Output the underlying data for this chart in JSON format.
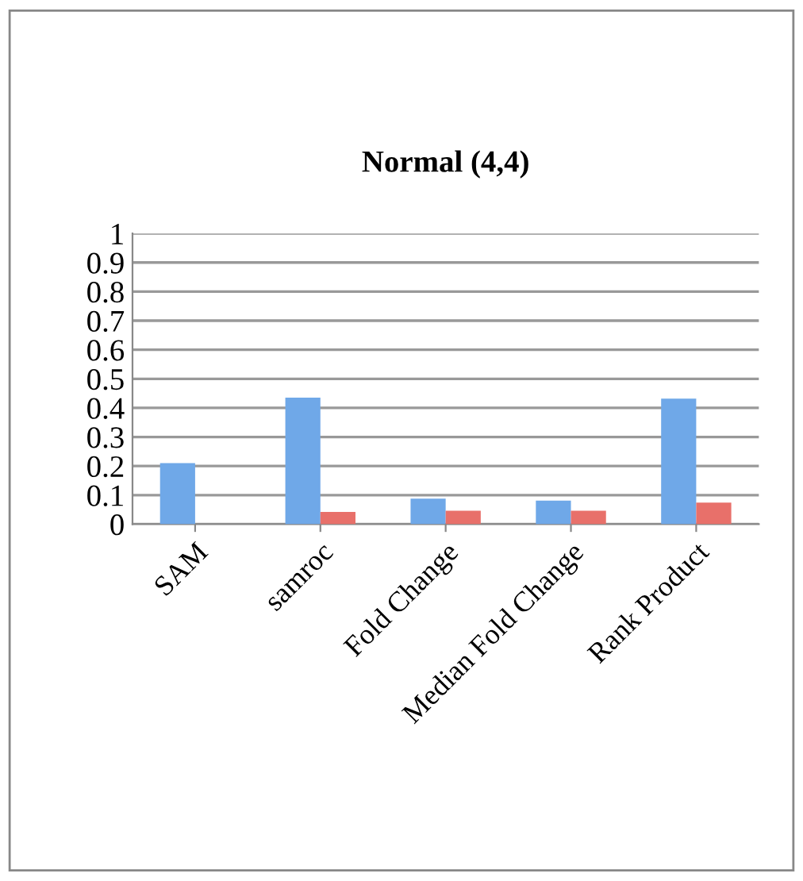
{
  "chart_data": {
    "type": "bar",
    "title": "Normal (4,4)",
    "categories": [
      "SAM",
      "samroc",
      "Fold Change",
      "Median Fold Change",
      "Rank Product"
    ],
    "series": [
      {
        "color": "#6fa8e8",
        "values": [
          0.21,
          0.435,
          0.088,
          0.081,
          0.432
        ]
      },
      {
        "color": "#e8706a",
        "values": [
          0,
          0.042,
          0.046,
          0.046,
          0.074
        ]
      }
    ],
    "ylim": [
      0,
      1
    ],
    "yticks": [
      0,
      0.1,
      0.2,
      0.3,
      0.4,
      0.5,
      0.6,
      0.7,
      0.8,
      0.9,
      1
    ],
    "grid": "y",
    "legend": false
  }
}
